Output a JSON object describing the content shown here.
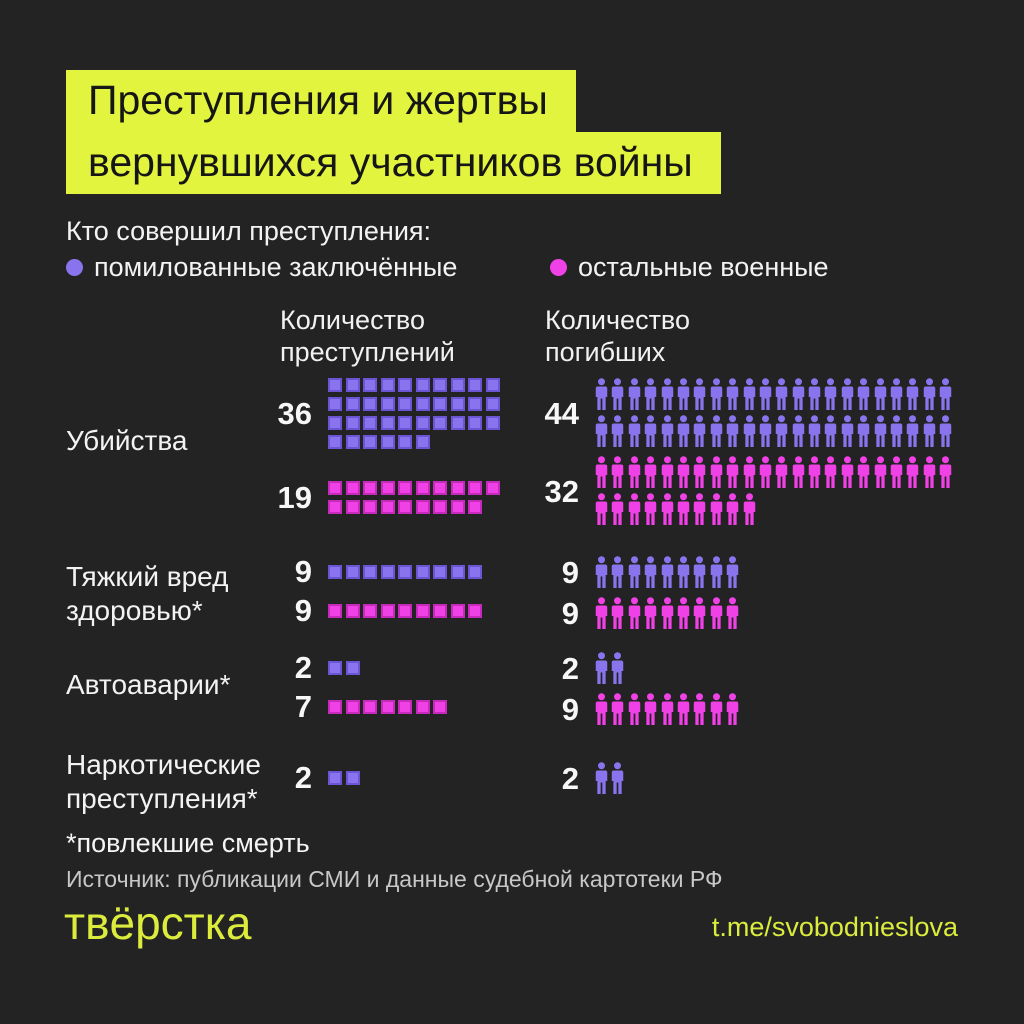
{
  "title": {
    "line1": "Преступления и жертвы",
    "line2": "вернувшихся участников войны",
    "bg": "#E3F43E"
  },
  "legend": {
    "heading": "Кто совершил преступления:",
    "items": [
      {
        "key": "pardoned",
        "label": "помилованные заключённые",
        "color": "#8A74EE"
      },
      {
        "key": "military",
        "label": "остальные военные",
        "color": "#F041E6"
      }
    ]
  },
  "columns": {
    "crimes": {
      "line1": "Количество",
      "line2": "преступлений"
    },
    "victims": {
      "line1": "Количество",
      "line2": "погибших"
    }
  },
  "chart_data": {
    "type": "pictogram",
    "legend": [
      "помилованные заключённые",
      "остальные военные"
    ],
    "columns": [
      "Количество преступлений",
      "Количество погибших"
    ],
    "icon_units": {
      "crimes": "square = 1 crime",
      "deaths": "person = 1 death"
    },
    "series_colors": {
      "pardoned": {
        "fill": "#8A74EE",
        "border": "#6C55D4"
      },
      "military": {
        "fill": "#F041E6",
        "border": "#C62ABB"
      }
    },
    "rows": [
      {
        "category": "Убийства",
        "crimes": {
          "pardoned": 36,
          "military": 19
        },
        "deaths": {
          "pardoned": 44,
          "military": 32
        }
      },
      {
        "category": "Тяжкий вред здоровью*",
        "crimes": {
          "pardoned": 9,
          "military": 9
        },
        "deaths": {
          "pardoned": 9,
          "military": 9
        }
      },
      {
        "category": "Автоаварии*",
        "crimes": {
          "pardoned": 2,
          "military": 7
        },
        "deaths": {
          "pardoned": 2,
          "military": 9
        }
      },
      {
        "category": "Наркотические преступления*",
        "crimes": {
          "pardoned": 2
        },
        "deaths": {
          "pardoned": 2
        }
      }
    ]
  },
  "footnote": "*повлекшие смерть",
  "source": "Источник: публикации СМИ и данные судебной картотеки РФ",
  "footer": {
    "logo": "твёрстка",
    "link": "t.me/svobodnieslova",
    "accent": "#DCEC3C"
  },
  "page": {
    "background": "#232323"
  }
}
